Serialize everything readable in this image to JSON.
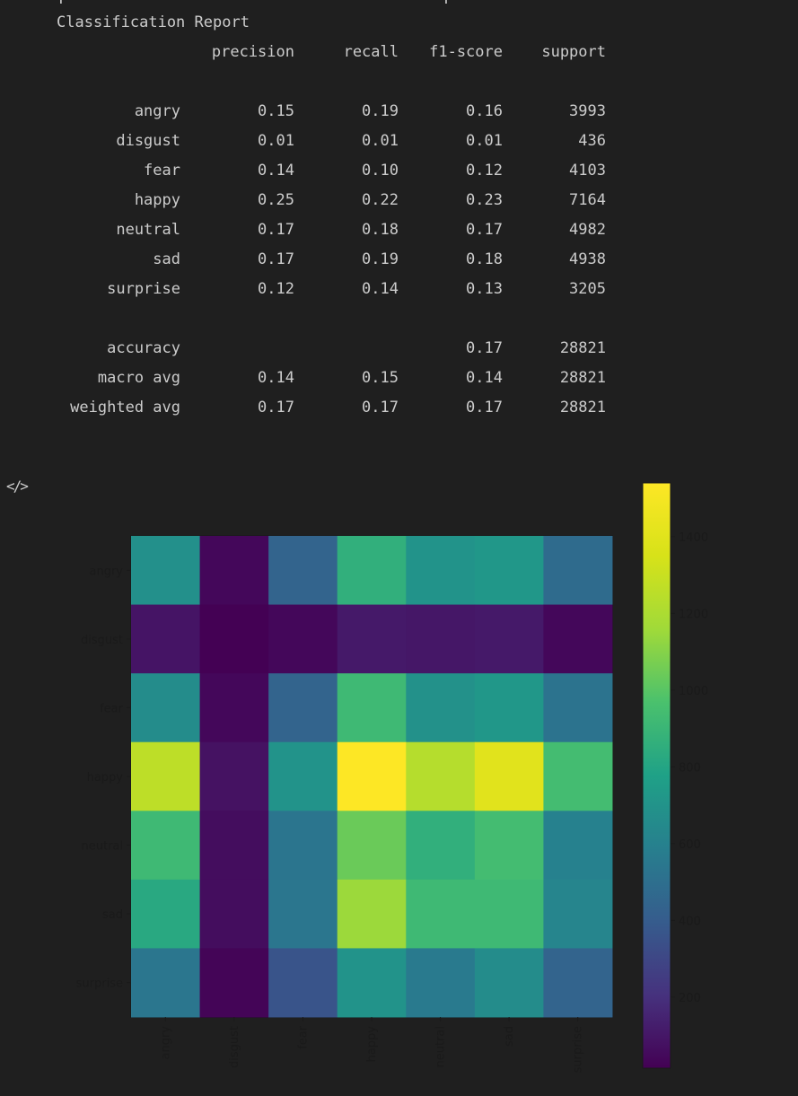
{
  "report": {
    "title": "Classification Report",
    "headers": [
      "precision",
      "recall",
      "f1-score",
      "support"
    ],
    "rows": [
      {
        "label": "angry",
        "precision": "0.15",
        "recall": "0.19",
        "f1": "0.16",
        "support": "3993"
      },
      {
        "label": "disgust",
        "precision": "0.01",
        "recall": "0.01",
        "f1": "0.01",
        "support": "436"
      },
      {
        "label": "fear",
        "precision": "0.14",
        "recall": "0.10",
        "f1": "0.12",
        "support": "4103"
      },
      {
        "label": "happy",
        "precision": "0.25",
        "recall": "0.22",
        "f1": "0.23",
        "support": "7164"
      },
      {
        "label": "neutral",
        "precision": "0.17",
        "recall": "0.18",
        "f1": "0.17",
        "support": "4982"
      },
      {
        "label": "sad",
        "precision": "0.17",
        "recall": "0.19",
        "f1": "0.18",
        "support": "4938"
      },
      {
        "label": "surprise",
        "precision": "0.12",
        "recall": "0.14",
        "f1": "0.13",
        "support": "3205"
      }
    ],
    "summary": [
      {
        "label": "accuracy",
        "precision": "",
        "recall": "",
        "f1": "0.17",
        "support": "28821"
      },
      {
        "label": "macro avg",
        "precision": "0.14",
        "recall": "0.15",
        "f1": "0.14",
        "support": "28821"
      },
      {
        "label": "weighted avg",
        "precision": "0.17",
        "recall": "0.17",
        "f1": "0.17",
        "support": "28821"
      }
    ]
  },
  "cell_toolbar": {
    "code_icon": "code-icon"
  },
  "chart_data": {
    "type": "heatmap",
    "colormap": "viridis",
    "x_labels": [
      "angry",
      "disgust",
      "fear",
      "happy",
      "neutral",
      "sad",
      "surprise"
    ],
    "y_labels": [
      "angry",
      "disgust",
      "fear",
      "happy",
      "neutral",
      "sad",
      "surprise"
    ],
    "values": [
      [
        680,
        40,
        440,
        860,
        700,
        720,
        480
      ],
      [
        90,
        15,
        40,
        110,
        100,
        110,
        40
      ],
      [
        660,
        40,
        440,
        920,
        690,
        720,
        520
      ],
      [
        1260,
        80,
        700,
        1540,
        1230,
        1400,
        940
      ],
      [
        920,
        60,
        530,
        1040,
        860,
        940,
        600
      ],
      [
        820,
        60,
        540,
        1150,
        920,
        920,
        620
      ],
      [
        540,
        30,
        360,
        700,
        560,
        660,
        440
      ]
    ],
    "colorbar": {
      "vmin": 15,
      "vmax": 1540,
      "ticks": [
        200,
        400,
        600,
        800,
        1000,
        1200,
        1400
      ]
    }
  }
}
